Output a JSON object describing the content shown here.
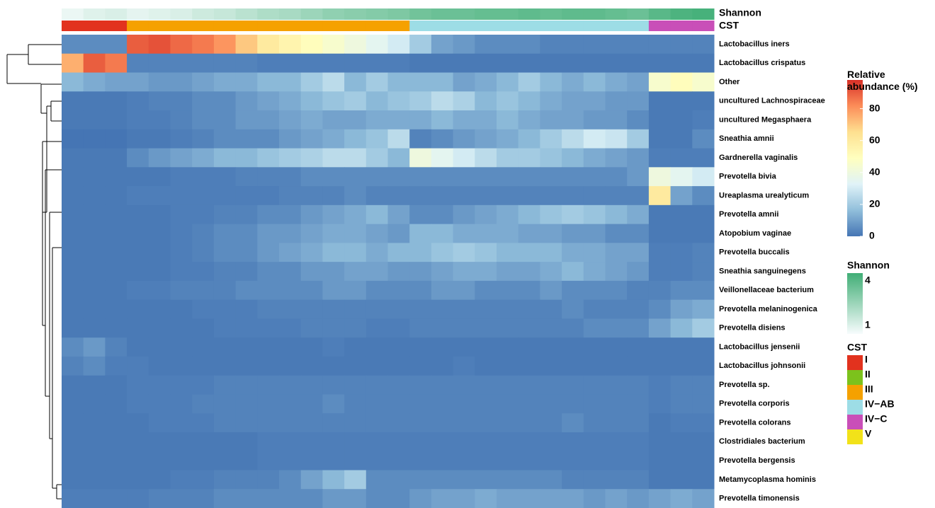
{
  "chart_data": {
    "type": "heatmap",
    "legend_title": "Relative abundance (%)",
    "rows": [
      "Lactobacillus iners",
      "Lactobacillus crispatus",
      "Other",
      "uncultured Lachnospiraceae",
      "uncultured Megasphaera",
      "Sneathia amnii",
      "Gardnerella vaginalis",
      "Prevotella bivia",
      "Ureaplasma urealyticum",
      "Prevotella amnii",
      "Atopobium vaginae",
      "Prevotella buccalis",
      "Sneathia sanguinegens",
      "Veillonellaceae bacterium",
      "Prevotella melaninogenica",
      "Prevotella disiens",
      "Lactobacillus jensenii",
      "Lactobacillus johnsonii",
      "Prevotella sp.",
      "Prevotella corporis",
      "Prevotella colorans",
      "Clostridiales bacterium",
      "Prevotella bergensis",
      "Metamycoplasma hominis",
      "Prevotella timonensis"
    ],
    "values": [
      [
        5,
        5,
        5,
        90,
        92,
        88,
        85,
        80,
        70,
        60,
        55,
        50,
        45,
        40,
        35,
        30,
        20,
        10,
        8,
        5,
        5,
        5,
        3,
        3,
        3,
        3,
        3,
        3,
        3,
        3
      ],
      [
        75,
        90,
        85,
        3,
        3,
        3,
        3,
        3,
        3,
        2,
        2,
        2,
        2,
        2,
        2,
        2,
        1,
        1,
        1,
        1,
        1,
        1,
        1,
        1,
        1,
        1,
        1,
        1,
        1,
        1
      ],
      [
        15,
        12,
        10,
        10,
        8,
        8,
        10,
        12,
        12,
        15,
        15,
        20,
        25,
        15,
        20,
        15,
        15,
        15,
        10,
        12,
        15,
        20,
        15,
        12,
        15,
        12,
        10,
        45,
        50,
        45
      ],
      [
        1,
        1,
        1,
        2,
        3,
        3,
        5,
        5,
        8,
        10,
        12,
        15,
        18,
        20,
        15,
        18,
        20,
        25,
        22,
        15,
        18,
        15,
        12,
        10,
        10,
        8,
        8,
        1,
        1,
        1
      ],
      [
        1,
        1,
        1,
        2,
        2,
        3,
        5,
        5,
        8,
        8,
        10,
        12,
        10,
        10,
        12,
        12,
        12,
        15,
        12,
        12,
        15,
        12,
        10,
        10,
        8,
        8,
        5,
        1,
        1,
        2
      ],
      [
        0,
        0,
        0,
        1,
        1,
        2,
        3,
        5,
        5,
        5,
        8,
        10,
        12,
        15,
        18,
        25,
        3,
        5,
        8,
        10,
        12,
        15,
        20,
        25,
        30,
        28,
        20,
        1,
        1,
        5
      ],
      [
        1,
        1,
        1,
        5,
        8,
        10,
        12,
        15,
        15,
        18,
        20,
        22,
        25,
        25,
        20,
        15,
        40,
        35,
        30,
        25,
        20,
        20,
        18,
        15,
        12,
        10,
        8,
        2,
        2,
        2
      ],
      [
        1,
        1,
        1,
        1,
        1,
        2,
        2,
        2,
        3,
        3,
        3,
        5,
        5,
        5,
        5,
        5,
        5,
        5,
        5,
        5,
        5,
        5,
        5,
        5,
        5,
        5,
        8,
        40,
        35,
        30
      ],
      [
        1,
        1,
        1,
        2,
        2,
        2,
        2,
        2,
        2,
        2,
        3,
        3,
        3,
        5,
        3,
        3,
        3,
        3,
        3,
        3,
        3,
        3,
        3,
        3,
        3,
        3,
        3,
        60,
        10,
        5
      ],
      [
        1,
        1,
        1,
        1,
        1,
        2,
        2,
        3,
        3,
        5,
        5,
        8,
        10,
        12,
        15,
        10,
        5,
        5,
        8,
        10,
        12,
        15,
        18,
        20,
        18,
        15,
        12,
        1,
        1,
        1
      ],
      [
        1,
        1,
        1,
        1,
        1,
        2,
        3,
        5,
        5,
        8,
        8,
        10,
        12,
        12,
        10,
        8,
        15,
        15,
        12,
        12,
        12,
        10,
        10,
        8,
        8,
        5,
        5,
        1,
        1,
        1
      ],
      [
        1,
        1,
        1,
        1,
        1,
        2,
        3,
        5,
        5,
        8,
        10,
        12,
        15,
        15,
        12,
        15,
        15,
        18,
        20,
        18,
        15,
        15,
        15,
        12,
        12,
        10,
        10,
        2,
        2,
        3
      ],
      [
        1,
        1,
        1,
        1,
        1,
        2,
        2,
        3,
        3,
        5,
        5,
        8,
        8,
        10,
        10,
        8,
        8,
        10,
        12,
        12,
        10,
        10,
        12,
        15,
        12,
        10,
        8,
        2,
        2,
        3
      ],
      [
        1,
        1,
        1,
        2,
        2,
        3,
        3,
        3,
        5,
        5,
        5,
        5,
        8,
        8,
        5,
        5,
        5,
        8,
        8,
        5,
        5,
        5,
        8,
        5,
        5,
        5,
        3,
        3,
        5,
        5
      ],
      [
        1,
        1,
        1,
        1,
        1,
        1,
        2,
        2,
        2,
        3,
        3,
        3,
        3,
        3,
        3,
        3,
        3,
        3,
        3,
        3,
        3,
        3,
        3,
        5,
        3,
        3,
        3,
        5,
        10,
        12
      ],
      [
        1,
        1,
        1,
        1,
        1,
        1,
        1,
        2,
        2,
        2,
        2,
        3,
        3,
        3,
        2,
        2,
        3,
        3,
        3,
        3,
        3,
        3,
        3,
        3,
        5,
        5,
        5,
        10,
        15,
        20
      ],
      [
        5,
        8,
        3,
        1,
        1,
        1,
        1,
        1,
        1,
        1,
        1,
        1,
        2,
        1,
        1,
        1,
        1,
        1,
        1,
        1,
        1,
        1,
        1,
        1,
        1,
        1,
        1,
        1,
        1,
        1
      ],
      [
        3,
        5,
        2,
        2,
        1,
        1,
        1,
        1,
        1,
        1,
        1,
        1,
        1,
        1,
        1,
        1,
        1,
        1,
        2,
        1,
        1,
        1,
        1,
        1,
        1,
        1,
        1,
        1,
        1,
        1
      ],
      [
        1,
        1,
        1,
        2,
        2,
        2,
        2,
        3,
        3,
        3,
        3,
        3,
        3,
        3,
        3,
        3,
        3,
        3,
        3,
        3,
        3,
        3,
        3,
        3,
        3,
        3,
        3,
        2,
        3,
        3
      ],
      [
        1,
        1,
        1,
        2,
        2,
        2,
        3,
        3,
        3,
        3,
        3,
        3,
        5,
        3,
        3,
        3,
        3,
        3,
        3,
        3,
        3,
        3,
        3,
        3,
        3,
        3,
        3,
        2,
        3,
        3
      ],
      [
        1,
        1,
        1,
        1,
        2,
        2,
        2,
        3,
        3,
        3,
        3,
        3,
        3,
        3,
        3,
        3,
        3,
        3,
        3,
        3,
        3,
        3,
        3,
        5,
        3,
        3,
        3,
        1,
        2,
        2
      ],
      [
        1,
        1,
        1,
        1,
        1,
        1,
        1,
        1,
        1,
        2,
        2,
        2,
        2,
        2,
        2,
        2,
        2,
        2,
        2,
        2,
        2,
        2,
        2,
        2,
        2,
        2,
        2,
        1,
        1,
        1
      ],
      [
        1,
        1,
        1,
        1,
        1,
        1,
        1,
        1,
        1,
        2,
        2,
        2,
        2,
        2,
        2,
        2,
        2,
        2,
        2,
        2,
        2,
        2,
        2,
        2,
        2,
        2,
        2,
        1,
        1,
        1
      ],
      [
        1,
        1,
        1,
        1,
        1,
        2,
        2,
        3,
        3,
        3,
        5,
        10,
        15,
        20,
        5,
        5,
        5,
        5,
        5,
        5,
        5,
        5,
        5,
        3,
        3,
        3,
        3,
        1,
        1,
        1
      ],
      [
        2,
        2,
        2,
        2,
        3,
        3,
        3,
        5,
        5,
        5,
        5,
        5,
        8,
        8,
        5,
        5,
        8,
        10,
        10,
        12,
        10,
        10,
        10,
        10,
        8,
        10,
        8,
        10,
        12,
        10
      ]
    ],
    "zlim": [
      0,
      98
    ],
    "zticks": [
      0,
      20,
      40,
      60,
      80
    ],
    "colors": [
      "#4575b4",
      "#91bfdb",
      "#e0f3f8",
      "#ffffbf",
      "#fee090",
      "#fc8d59",
      "#d73027"
    ],
    "shannon": {
      "name": "Shannon",
      "lim": [
        1,
        4
      ],
      "ticks": [
        1,
        4
      ],
      "colors": [
        "#f7fcfd",
        "#41ae76"
      ],
      "values": [
        1.2,
        1.4,
        1.5,
        1.3,
        1.4,
        1.5,
        1.7,
        1.8,
        2.0,
        2.2,
        2.3,
        2.5,
        2.7,
        2.8,
        2.9,
        3.0,
        3.2,
        3.3,
        3.3,
        3.4,
        3.4,
        3.5,
        3.4,
        3.5,
        3.5,
        3.4,
        3.3,
        3.6,
        3.8,
        3.9
      ]
    },
    "cst": {
      "name": "CST",
      "categories": [
        "I",
        "II",
        "III",
        "IV−AB",
        "IV−C",
        "V"
      ],
      "colors": [
        "#e2321e",
        "#7cc21c",
        "#f5a100",
        "#9ddde6",
        "#c94fb8",
        "#f2e219"
      ],
      "values": [
        "I",
        "I",
        "I",
        "III",
        "III",
        "III",
        "III",
        "III",
        "III",
        "III",
        "III",
        "III",
        "III",
        "III",
        "III",
        "III",
        "IV−AB",
        "IV−AB",
        "IV−AB",
        "IV−AB",
        "IV−AB",
        "IV−AB",
        "IV−AB",
        "IV−AB",
        "IV−AB",
        "IV−AB",
        "IV−AB",
        "IV−C",
        "IV−C",
        "IV−C"
      ]
    }
  }
}
